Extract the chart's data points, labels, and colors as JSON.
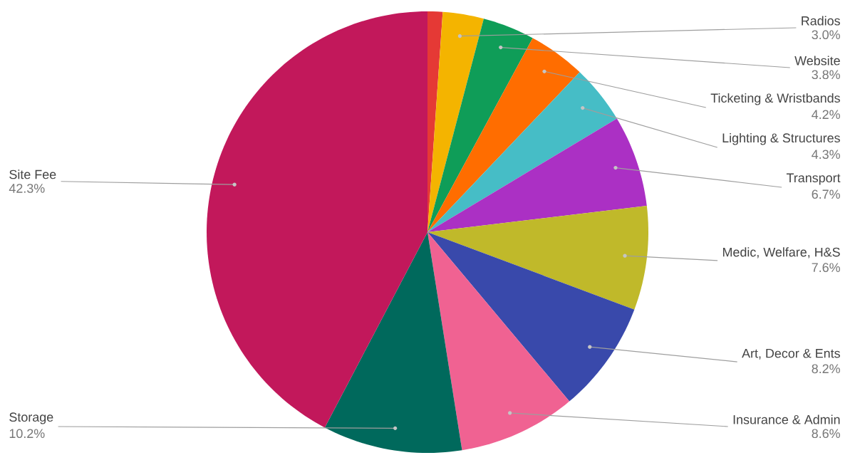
{
  "chart_data": {
    "type": "pie",
    "categories": [
      null,
      "Radios",
      "Website",
      "Ticketing & Wristbands",
      "Lighting & Structures",
      "Transport",
      "Medic, Welfare, H&S",
      "Art, Decor & Ents",
      "Insurance & Admin",
      "Storage",
      "Site Fee"
    ],
    "values": [
      1.1,
      3.0,
      3.8,
      4.2,
      4.3,
      6.7,
      7.6,
      8.2,
      8.6,
      10.2,
      42.3
    ],
    "value_labels": [
      null,
      "3.0%",
      "3.8%",
      "4.2%",
      "4.3%",
      "6.7%",
      "7.6%",
      "8.2%",
      "8.6%",
      "10.2%",
      "42.3%"
    ],
    "colors": [
      "#e53935",
      "#f4b400",
      "#0f9d58",
      "#ff6d00",
      "#46bdc6",
      "#ab30c4",
      "#c0b92a",
      "#3949ab",
      "#f06292",
      "#00695c",
      "#c2185b"
    ]
  }
}
